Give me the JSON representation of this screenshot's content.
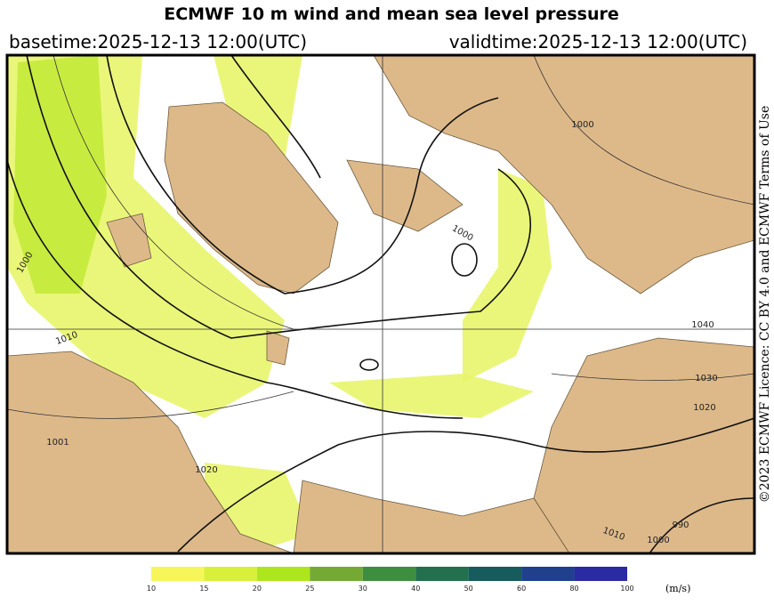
{
  "header": {
    "title": "ECMWF 10 m wind and mean sea level pressure",
    "basetime": "basetime:2025-12-13 12:00(UTC)",
    "validtime": "validtime:2025-12-13 12:00(UTC)"
  },
  "map": {
    "isobar_labels": [
      1000,
      1010,
      1001,
      1020,
      1000,
      1000,
      1040,
      1030,
      1020,
      1010,
      1000,
      990
    ]
  },
  "colorbar": {
    "ticks": [
      10,
      15,
      20,
      25,
      30,
      40,
      50,
      60,
      80,
      100
    ],
    "colors": [
      "#f6f65a",
      "#d8f03a",
      "#aee61e",
      "#74aa34",
      "#3e8e40",
      "#22704e",
      "#175c5c",
      "#20408e",
      "#2a2aa2"
    ],
    "unit": "(m/s)"
  },
  "credit": "©2023 ECMWF Licence: CC BY 4.0 and ECMWF Terms of Use"
}
